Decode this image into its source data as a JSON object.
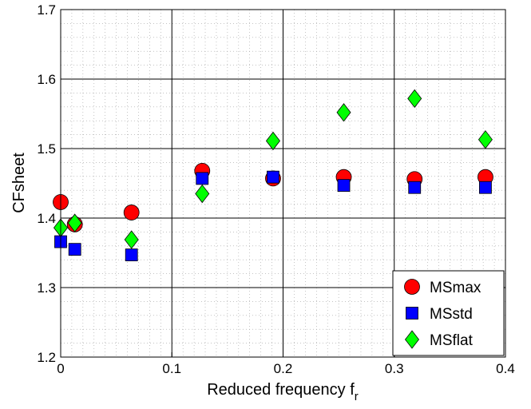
{
  "chart_data": {
    "type": "scatter",
    "title": "",
    "xlabel": "Reduced frequency f",
    "xlabel_subscript": "r",
    "ylabel": "CFsheet",
    "xlim": [
      0,
      0.4
    ],
    "ylim": [
      1.2,
      1.7
    ],
    "xticks": [
      "0",
      "0.1",
      "0.2",
      "0.3",
      "0.4"
    ],
    "yticks": [
      "1.2",
      "1.3",
      "1.4",
      "1.5",
      "1.6",
      "1.7"
    ],
    "grid": "major and minor (dotted)",
    "legend_position": "bottom-right",
    "series": [
      {
        "name": "MSmax",
        "marker": "circle",
        "color": "#ff0000",
        "x": [
          0.0,
          0.0127,
          0.0637,
          0.1273,
          0.191,
          0.2546,
          0.3183,
          0.382
        ],
        "y": [
          1.423,
          1.391,
          1.408,
          1.468,
          1.457,
          1.459,
          1.456,
          1.459
        ]
      },
      {
        "name": "MSstd",
        "marker": "square",
        "color": "#0000ff",
        "x": [
          0.0,
          0.0127,
          0.0637,
          0.1273,
          0.191,
          0.2546,
          0.3183,
          0.382
        ],
        "y": [
          1.366,
          1.355,
          1.347,
          1.457,
          1.459,
          1.447,
          1.444,
          1.444
        ]
      },
      {
        "name": "MSflat",
        "marker": "diamond",
        "color": "#00ff00",
        "x": [
          0.0,
          0.0127,
          0.0637,
          0.1273,
          0.191,
          0.2546,
          0.3183,
          0.382
        ],
        "y": [
          1.386,
          1.393,
          1.369,
          1.435,
          1.511,
          1.552,
          1.572,
          1.513
        ]
      }
    ]
  }
}
